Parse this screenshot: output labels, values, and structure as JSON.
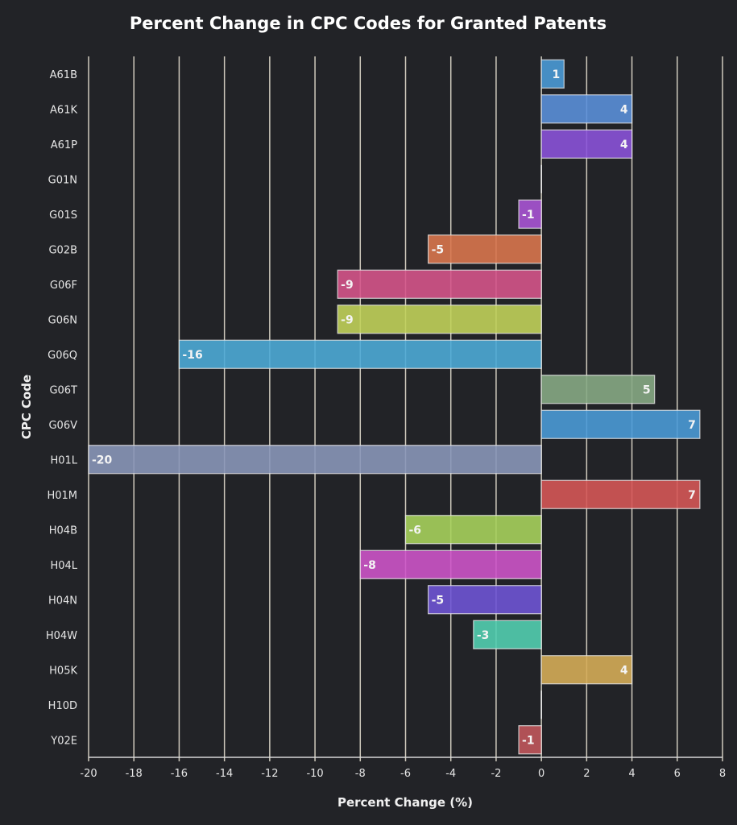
{
  "chart_data": {
    "type": "bar",
    "orientation": "horizontal",
    "title": "Percent Change in CPC Codes for Granted Patents",
    "xlabel": "Percent Change (%)",
    "ylabel": "CPC Code",
    "xlim": [
      -20,
      8
    ],
    "xticks": [
      -20,
      -18,
      -16,
      -14,
      -12,
      -10,
      -8,
      -6,
      -4,
      -2,
      0,
      2,
      4,
      6,
      8
    ],
    "grid": "vertical",
    "legend": "none",
    "categories": [
      "A61B",
      "A61K",
      "A61P",
      "G01N",
      "G01S",
      "G02B",
      "G06F",
      "G06N",
      "G06Q",
      "G06T",
      "G06V",
      "H01L",
      "H01M",
      "H04B",
      "H04L",
      "H04N",
      "H04W",
      "H05K",
      "H10D",
      "Y02E"
    ],
    "values": [
      1,
      4,
      4,
      0,
      -1,
      -5,
      -9,
      -9,
      -16,
      5,
      7,
      -20,
      7,
      -6,
      -8,
      -5,
      -3,
      4,
      0,
      -1
    ],
    "colors": [
      "#4a9ad6",
      "#5a8fd8",
      "#8a52d8",
      "#8a52d8",
      "#a854d4",
      "#d8764e",
      "#d4548a",
      "#c0d05a",
      "#4caad6",
      "#86a884",
      "#4a9ad6",
      "#8896b8",
      "#d45656",
      "#a6d05c",
      "#cc54c8",
      "#6e54d4",
      "#52ceb0",
      "#d4ac58",
      "#52ceb0",
      "#c0565c"
    ]
  }
}
